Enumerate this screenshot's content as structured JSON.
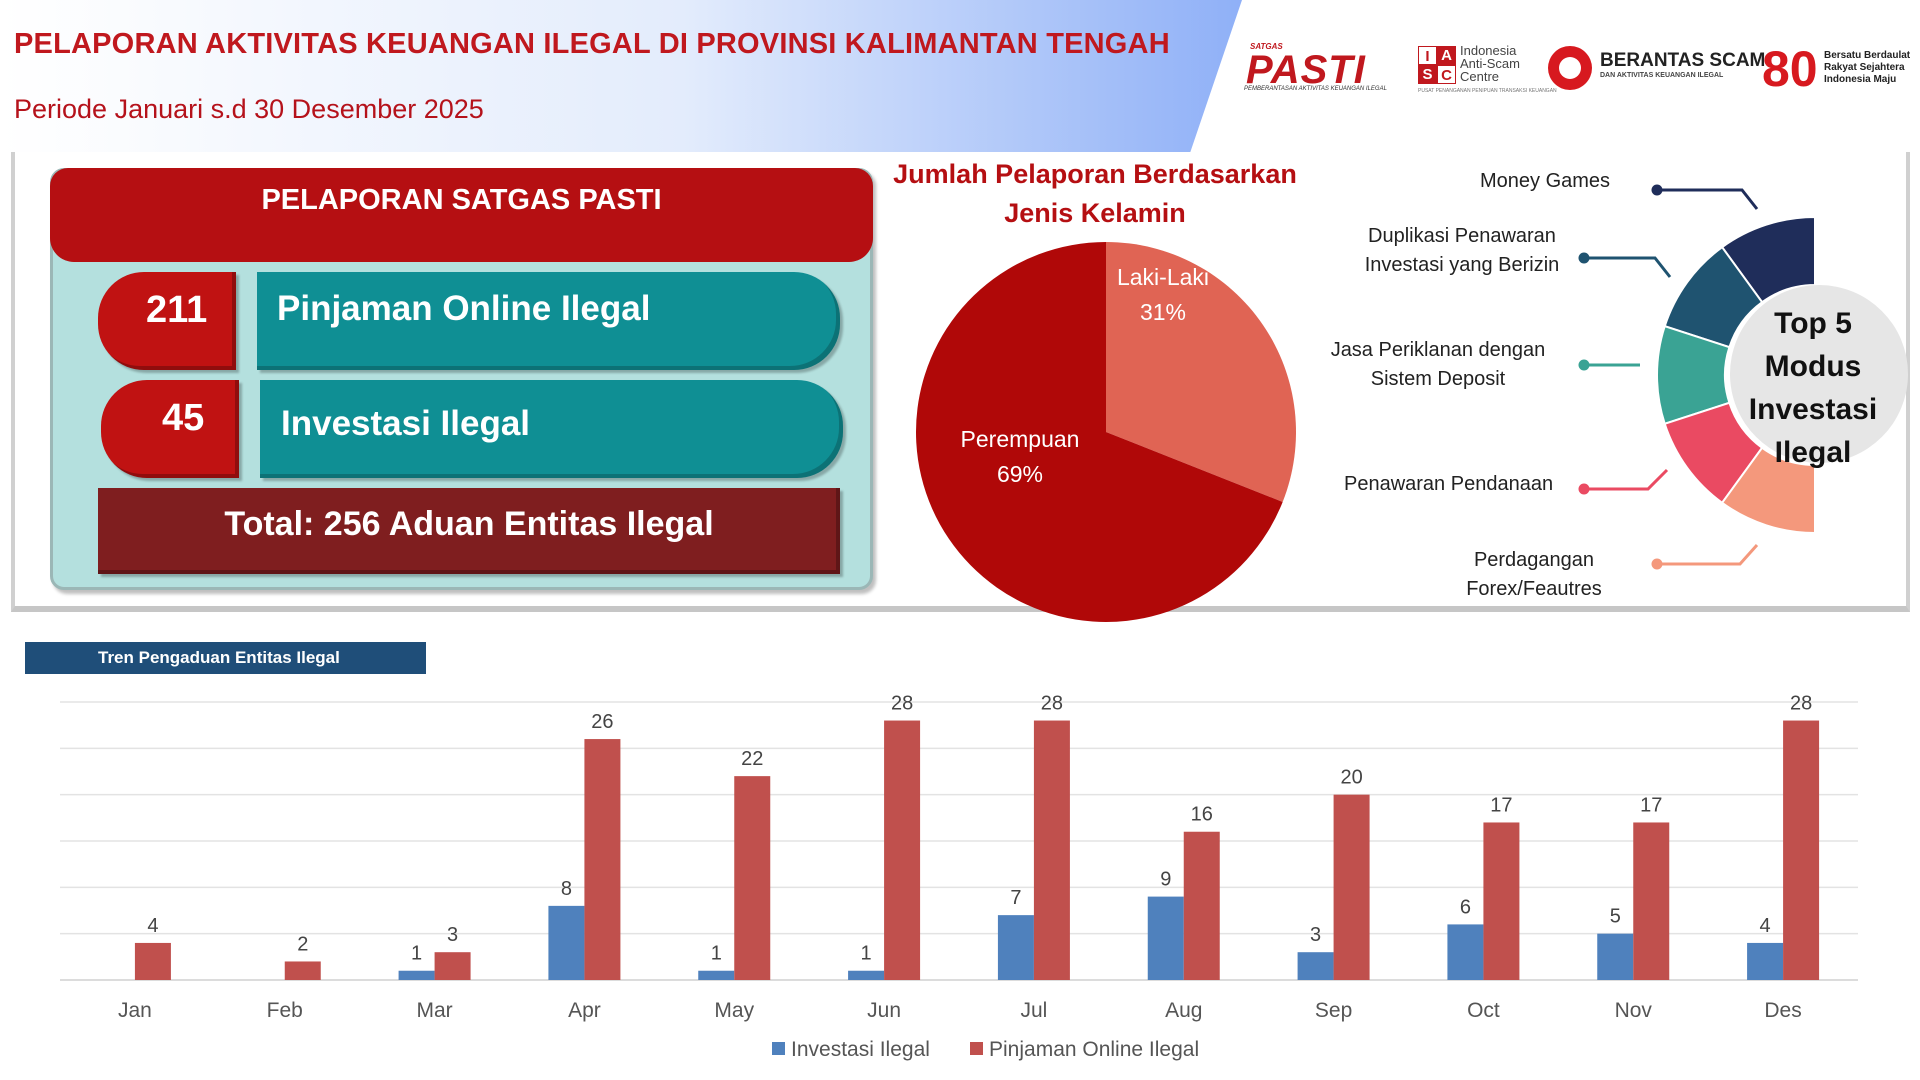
{
  "header": {
    "title": "PELAPORAN AKTIVITAS KEUANGAN ILEGAL DI PROVINSI KALIMANTAN TENGAH",
    "period": "Periode Januari s.d 30 Desember 2025"
  },
  "logos": {
    "pasti": {
      "top": "SATGAS",
      "word": "PASTI",
      "sub": "PEMBERANTASAN AKTIVITAS KEUANGAN ILEGAL"
    },
    "iasc": {
      "letters": [
        "I",
        "A",
        "S",
        "C"
      ],
      "line1": "Indonesia",
      "line2": "Anti-Scam",
      "line3": "Centre",
      "tiny": "PUSAT PENANGANAN PENIPUAN TRANSAKSI KEUANGAN"
    },
    "berantas": {
      "big": "BERANTAS SCAM",
      "small": "DAN AKTIVITAS KEUANGAN ILEGAL"
    },
    "eighty": {
      "num": "80",
      "line1": "Bersatu Berdaulat",
      "line2": "Rakyat Sejahtera",
      "line3": "Indonesia Maju"
    }
  },
  "satgas": {
    "title": "PELAPORAN SATGAS PASTI",
    "rows": [
      {
        "count": "211",
        "label": "Pinjaman Online Ilegal"
      },
      {
        "count": "45",
        "label": "Investasi Ilegal"
      }
    ],
    "total": "Total: 256 Aduan Entitas Ilegal"
  },
  "modus": {
    "center": "Top 5 Modus Investasi Ilegal",
    "items": [
      {
        "label": "Money Games",
        "color": "#1f2d5a"
      },
      {
        "label": "Duplikasi Penawaran Investasi yang Berizin",
        "color": "#1f5370"
      },
      {
        "label": "Jasa Periklanan dengan Sistem Deposit",
        "color": "#3aa394"
      },
      {
        "label": "Penawaran Pendanaan",
        "color": "#ea4a62"
      },
      {
        "label": "Perdagangan Forex/Feautres",
        "color": "#f4987c"
      }
    ]
  },
  "chart_data": [
    {
      "type": "pie",
      "title": "Jumlah Pelaporan Berdasarkan Jenis Kelamin",
      "slices": [
        {
          "label": "Laki-Laki",
          "value": 31,
          "display": "31%",
          "color": "#e06454"
        },
        {
          "label": "Perempuan",
          "value": 69,
          "display": "69%",
          "color": "#b00808"
        }
      ]
    },
    {
      "type": "bar",
      "title": "Tren Pengaduan Entitas Ilegal",
      "categories": [
        "Jan",
        "Feb",
        "Mar",
        "Apr",
        "May",
        "Jun",
        "Jul",
        "Aug",
        "Sep",
        "Oct",
        "Nov",
        "Des"
      ],
      "ylim": [
        0,
        30
      ],
      "grid": true,
      "legend": "bottom",
      "series": [
        {
          "name": "Investasi Ilegal",
          "color": "#4f81bd",
          "values": [
            0,
            0,
            1,
            8,
            1,
            1,
            7,
            9,
            3,
            6,
            5,
            4
          ]
        },
        {
          "name": "Pinjaman Online Ilegal",
          "color": "#c0504d",
          "values": [
            4,
            2,
            3,
            26,
            22,
            28,
            28,
            16,
            20,
            17,
            17,
            28
          ]
        }
      ]
    }
  ]
}
